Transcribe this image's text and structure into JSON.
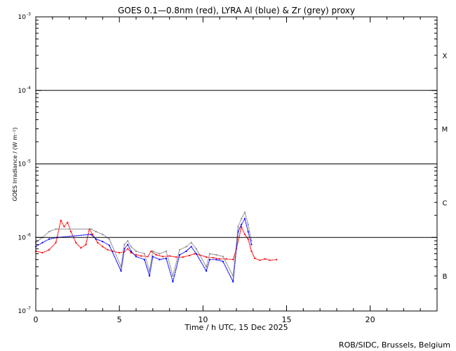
{
  "chart_data": {
    "type": "scatter",
    "title": "GOES 0.1—0.8nm (red), LYRA Al (blue) & Zr (grey) proxy",
    "xlabel": "Time / h UTC, 15 Dec 2025",
    "ylabel": "GOES Irradiance / (W m⁻²)",
    "xlim": [
      0,
      24
    ],
    "ylim": [
      1e-07,
      0.001
    ],
    "yscale": "log",
    "x_ticks": [
      0,
      5,
      10,
      15,
      20
    ],
    "x_tick_labels": [
      "0",
      "5",
      "10",
      "15",
      "20"
    ],
    "y_ticks": [
      1e-07,
      1e-06,
      1e-05,
      0.0001,
      0.001
    ],
    "y_tick_labels": [
      {
        "base": "10",
        "exp": "-7"
      },
      {
        "base": "10",
        "exp": "-6"
      },
      {
        "base": "10",
        "exp": "-5"
      },
      {
        "base": "10",
        "exp": "-4"
      },
      {
        "base": "10",
        "exp": "-3"
      }
    ],
    "class_lines": [
      1e-06,
      1e-05,
      0.0001
    ],
    "class_labels": [
      {
        "label": "X",
        "y": 0.0003
      },
      {
        "label": "M",
        "y": 3e-05
      },
      {
        "label": "C",
        "y": 3e-06
      },
      {
        "label": "B",
        "y": 3e-07
      }
    ],
    "grid": false,
    "footer": "ROB/SIDC, Brussels, Belgium",
    "series": [
      {
        "color": "#ff0000",
        "points": [
          [
            0.0,
            6.5e-07
          ],
          [
            0.4,
            6.2e-07
          ],
          [
            0.8,
            6.8e-07
          ],
          [
            1.2,
            8.5e-07
          ],
          [
            1.5,
            1.7e-06
          ],
          [
            1.7,
            1.4e-06
          ],
          [
            1.9,
            1.6e-06
          ],
          [
            2.1,
            1.2e-06
          ],
          [
            2.4,
            8.5e-07
          ],
          [
            2.7,
            7.2e-07
          ],
          [
            3.0,
            8e-07
          ],
          [
            3.2,
            1.3e-06
          ],
          [
            3.4,
            1.1e-06
          ],
          [
            3.7,
            8.5e-07
          ],
          [
            4.0,
            7.5e-07
          ],
          [
            4.3,
            6.8e-07
          ],
          [
            4.6,
            6.5e-07
          ],
          [
            5.0,
            6.2e-07
          ],
          [
            5.3,
            6.4e-07
          ],
          [
            5.5,
            7e-07
          ],
          [
            5.7,
            6.2e-07
          ],
          [
            6.0,
            5.8e-07
          ],
          [
            6.3,
            5.6e-07
          ],
          [
            6.7,
            5.5e-07
          ],
          [
            6.9,
            6.5e-07
          ],
          [
            7.2,
            5.8e-07
          ],
          [
            7.6,
            5.5e-07
          ],
          [
            8.0,
            5.6e-07
          ],
          [
            8.4,
            5.4e-07
          ],
          [
            8.8,
            5.4e-07
          ],
          [
            9.2,
            5.7e-07
          ],
          [
            9.5,
            6e-07
          ],
          [
            9.8,
            5.8e-07
          ],
          [
            10.2,
            5.4e-07
          ],
          [
            10.6,
            5.3e-07
          ],
          [
            11.0,
            5.1e-07
          ],
          [
            11.4,
            5.1e-07
          ],
          [
            11.8,
            5e-07
          ],
          [
            12.0,
            7e-07
          ],
          [
            12.3,
            1.4e-06
          ],
          [
            12.5,
            1.1e-06
          ],
          [
            12.7,
            9.5e-07
          ],
          [
            12.9,
            6.5e-07
          ],
          [
            13.1,
            5.2e-07
          ],
          [
            13.4,
            4.9e-07
          ],
          [
            13.7,
            5.1e-07
          ],
          [
            14.0,
            4.9e-07
          ],
          [
            14.4,
            5e-07
          ]
        ]
      },
      {
        "color": "#0000ff",
        "points": [
          [
            0.0,
            7.5e-07
          ],
          [
            0.4,
            8.5e-07
          ],
          [
            0.8,
            9.5e-07
          ],
          [
            1.3,
            1e-06
          ],
          [
            3.3,
            1.1e-06
          ],
          [
            3.6,
            9.5e-07
          ],
          [
            4.0,
            8.8e-07
          ],
          [
            4.4,
            7.8e-07
          ],
          [
            5.1,
            3.5e-07
          ],
          [
            5.3,
            7e-07
          ],
          [
            5.5,
            8e-07
          ],
          [
            5.7,
            6.5e-07
          ],
          [
            6.0,
            5.5e-07
          ],
          [
            6.5,
            5e-07
          ],
          [
            6.8,
            3e-07
          ],
          [
            7.0,
            5.5e-07
          ],
          [
            7.4,
            5e-07
          ],
          [
            7.8,
            5.2e-07
          ],
          [
            8.2,
            2.5e-07
          ],
          [
            8.6,
            5.8e-07
          ],
          [
            9.0,
            6.5e-07
          ],
          [
            9.3,
            7.5e-07
          ],
          [
            9.6,
            6e-07
          ],
          [
            10.2,
            3.5e-07
          ],
          [
            10.4,
            5e-07
          ],
          [
            10.8,
            5e-07
          ],
          [
            11.2,
            4.7e-07
          ],
          [
            11.8,
            2.5e-07
          ],
          [
            12.1,
            1.2e-06
          ],
          [
            12.3,
            1.5e-06
          ],
          [
            12.5,
            1.8e-06
          ],
          [
            12.7,
            1.2e-06
          ],
          [
            12.9,
            8e-07
          ]
        ]
      },
      {
        "color": "#888888",
        "points": [
          [
            0.0,
            8.5e-07
          ],
          [
            0.4,
            1e-06
          ],
          [
            0.8,
            1.2e-06
          ],
          [
            1.2,
            1.3e-06
          ],
          [
            3.3,
            1.3e-06
          ],
          [
            3.6,
            1.2e-06
          ],
          [
            4.0,
            1.1e-06
          ],
          [
            4.4,
            9.5e-07
          ],
          [
            5.1,
            4e-07
          ],
          [
            5.3,
            8e-07
          ],
          [
            5.5,
            9e-07
          ],
          [
            5.7,
            7.5e-07
          ],
          [
            6.0,
            6.5e-07
          ],
          [
            6.5,
            6e-07
          ],
          [
            6.8,
            3.5e-07
          ],
          [
            7.0,
            6.5e-07
          ],
          [
            7.4,
            6e-07
          ],
          [
            7.8,
            6.5e-07
          ],
          [
            8.2,
            3e-07
          ],
          [
            8.6,
            6.8e-07
          ],
          [
            9.0,
            7.5e-07
          ],
          [
            9.3,
            8.5e-07
          ],
          [
            9.6,
            7e-07
          ],
          [
            10.2,
            4e-07
          ],
          [
            10.4,
            6e-07
          ],
          [
            10.8,
            5.8e-07
          ],
          [
            11.2,
            5.5e-07
          ],
          [
            11.8,
            3e-07
          ],
          [
            12.1,
            1.4e-06
          ],
          [
            12.3,
            1.8e-06
          ],
          [
            12.5,
            2.2e-06
          ],
          [
            12.7,
            1.5e-06
          ],
          [
            12.9,
            9e-07
          ]
        ]
      }
    ]
  }
}
